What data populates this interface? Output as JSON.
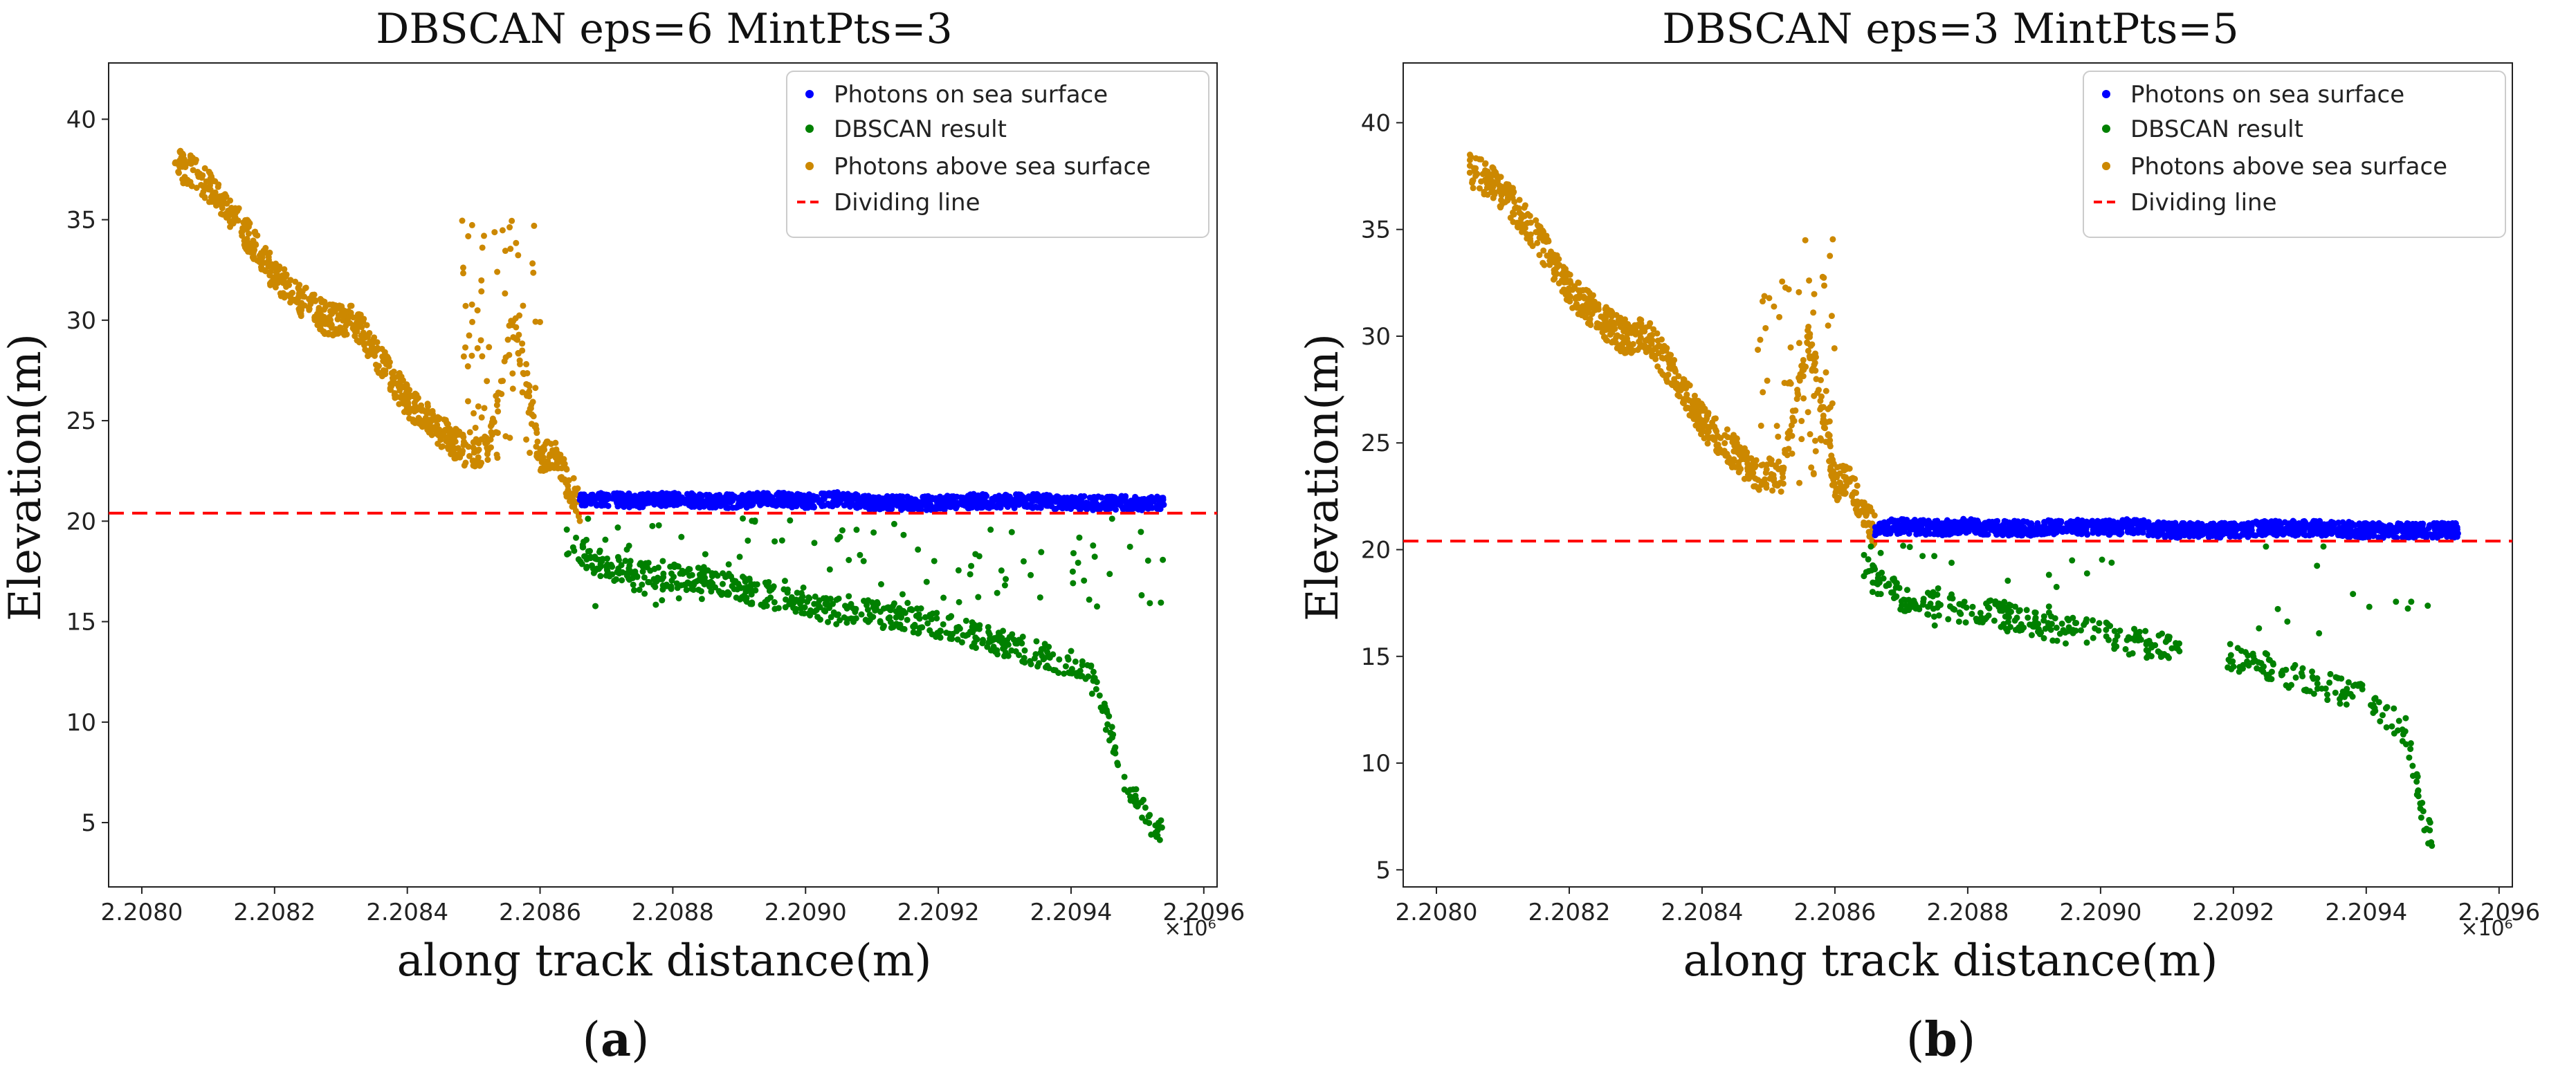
{
  "chart_data": [
    {
      "type": "scatter",
      "panel_id": "a",
      "title": "DBSCAN eps=6 MintPts=3",
      "xlabel": "along track distance(m)",
      "ylabel": "Elevation(m)",
      "caption": "a",
      "x_offset_label": "×10⁶",
      "xlim": [
        2.20795,
        2.20962
      ],
      "ylim": [
        1.8,
        42.8
      ],
      "x_ticks": [
        2.208,
        2.2082,
        2.2084,
        2.2086,
        2.2088,
        2.209,
        2.2092,
        2.2094,
        2.2096
      ],
      "x_tick_labels": [
        "2.2080",
        "2.2082",
        "2.2084",
        "2.2086",
        "2.2088",
        "2.2090",
        "2.2092",
        "2.2094",
        "2.2096"
      ],
      "y_ticks": [
        5,
        10,
        15,
        20,
        25,
        30,
        35,
        40
      ],
      "y_tick_labels": [
        "5",
        "10",
        "15",
        "20",
        "25",
        "30",
        "35",
        "40"
      ],
      "legend_position": "top-right",
      "dividing_line_y": 20.4,
      "series": [
        {
          "name": "Photons on sea surface",
          "color": "#0000ff",
          "x": [
            2.20866,
            2.2087,
            2.20875,
            2.2088,
            2.20885,
            2.2089,
            2.20895,
            2.209,
            2.20905,
            2.2091,
            2.20915,
            2.2092,
            2.20925,
            2.2093,
            2.20935,
            2.2094,
            2.20945,
            2.2095,
            2.20954
          ],
          "y": [
            21.0,
            21.1,
            21.0,
            21.1,
            21.0,
            21.0,
            21.1,
            21.0,
            21.1,
            20.9,
            20.9,
            20.9,
            21.0,
            21.0,
            21.0,
            20.9,
            20.9,
            20.9,
            20.9
          ]
        },
        {
          "name": "DBSCAN result",
          "color": "#008000",
          "x": [
            2.20864,
            2.20868,
            2.20872,
            2.20876,
            2.2088,
            2.20884,
            2.20888,
            2.20892,
            2.20896,
            2.209,
            2.20905,
            2.2091,
            2.20915,
            2.2092,
            2.20925,
            2.2093,
            2.20935,
            2.2094,
            2.20943,
            2.20945,
            2.20948,
            2.2095,
            2.20952,
            2.20954
          ],
          "y": [
            19.0,
            18.0,
            17.6,
            17.3,
            17.2,
            17.1,
            16.9,
            16.5,
            16.2,
            15.8,
            15.5,
            15.4,
            15.2,
            14.8,
            14.4,
            13.9,
            13.4,
            12.9,
            12.2,
            10.5,
            7.0,
            6.0,
            5.0,
            4.5
          ]
        },
        {
          "name": "Photons above sea surface",
          "color": "#cc8800",
          "x": [
            2.20805,
            2.20808,
            2.20812,
            2.20816,
            2.2082,
            2.20824,
            2.20828,
            2.20832,
            2.20836,
            2.2084,
            2.20844,
            2.20848,
            2.20852,
            2.20856,
            2.20858,
            2.2086,
            2.20862,
            2.20864,
            2.20866
          ],
          "y": [
            37.8,
            37.3,
            36.0,
            34.2,
            32.2,
            31.0,
            30.0,
            30.0,
            28.0,
            26.0,
            24.8,
            23.6,
            23.4,
            30.0,
            27.0,
            23.0,
            23.5,
            22.0,
            20.8
          ]
        },
        {
          "name": "Dividing line",
          "color": "#ff0000",
          "style": "dashed",
          "y": 20.4
        }
      ]
    },
    {
      "type": "scatter",
      "panel_id": "b",
      "title": "DBSCAN eps=3 MintPts=5",
      "xlabel": "along track distance(m)",
      "ylabel": "Elevation(m)",
      "caption": "b",
      "x_offset_label": "×10⁶",
      "xlim": [
        2.20795,
        2.20962
      ],
      "ylim": [
        4.2,
        42.8
      ],
      "x_ticks": [
        2.208,
        2.2082,
        2.2084,
        2.2086,
        2.2088,
        2.209,
        2.2092,
        2.2094,
        2.2096
      ],
      "x_tick_labels": [
        "2.2080",
        "2.2082",
        "2.2084",
        "2.2086",
        "2.2088",
        "2.2090",
        "2.2092",
        "2.2094",
        "2.2096"
      ],
      "y_ticks": [
        5,
        10,
        15,
        20,
        25,
        30,
        35,
        40
      ],
      "y_tick_labels": [
        "5",
        "10",
        "15",
        "20",
        "25",
        "30",
        "35",
        "40"
      ],
      "legend_position": "top-right",
      "dividing_line_y": 20.4,
      "series": [
        {
          "name": "Photons on sea surface",
          "color": "#0000ff",
          "x": [
            2.20866,
            2.2087,
            2.20875,
            2.2088,
            2.20885,
            2.2089,
            2.20895,
            2.209,
            2.20905,
            2.2091,
            2.20915,
            2.2092,
            2.20925,
            2.2093,
            2.20935,
            2.2094,
            2.20945,
            2.2095,
            2.20954
          ],
          "y": [
            21.0,
            21.1,
            21.0,
            21.1,
            21.0,
            21.0,
            21.1,
            21.0,
            21.1,
            20.9,
            20.9,
            20.9,
            21.0,
            21.0,
            21.0,
            20.9,
            20.9,
            20.9,
            20.9
          ]
        },
        {
          "name": "DBSCAN result",
          "color": "#008000",
          "x": [
            2.20864,
            2.20866,
            2.2087,
            2.20874,
            2.20878,
            2.20882,
            2.20886,
            2.2089,
            2.20895,
            2.209,
            2.20906,
            2.2091,
            2.2092,
            2.20924,
            2.20928,
            2.20932,
            2.20936,
            2.2094,
            2.20943,
            2.20946,
            2.20949,
            2.2095
          ],
          "y": [
            19.5,
            18.5,
            17.8,
            17.4,
            17.3,
            17.1,
            16.8,
            16.5,
            16.2,
            16.0,
            15.6,
            15.4,
            15.0,
            14.6,
            14.2,
            13.8,
            13.4,
            13.0,
            12.3,
            11.5,
            7.0,
            6.5
          ]
        },
        {
          "name": "Photons above sea surface",
          "color": "#cc8800",
          "x": [
            2.20805,
            2.20808,
            2.20812,
            2.20816,
            2.2082,
            2.20824,
            2.20828,
            2.20832,
            2.20836,
            2.2084,
            2.20844,
            2.20848,
            2.20852,
            2.20856,
            2.20858,
            2.2086,
            2.20862,
            2.20864,
            2.20866
          ],
          "y": [
            37.8,
            37.3,
            36.0,
            34.2,
            32.2,
            31.0,
            30.0,
            30.0,
            28.0,
            26.0,
            24.8,
            23.6,
            23.4,
            30.0,
            27.0,
            23.0,
            23.5,
            22.0,
            20.8
          ]
        },
        {
          "name": "Dividing line",
          "color": "#ff0000",
          "style": "dashed",
          "y": 20.4
        }
      ]
    }
  ]
}
